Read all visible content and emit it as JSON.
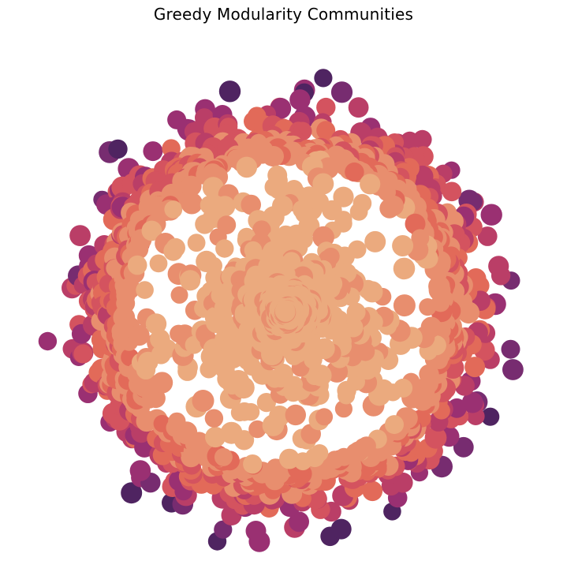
{
  "figure": {
    "title": "Greedy Modularity Communities"
  },
  "palette": {
    "name": "flare",
    "community_colors": [
      "#EBAA7E",
      "#E88E6E",
      "#E26A59",
      "#D4535F",
      "#BA3E67",
      "#9A3072",
      "#772C70",
      "#4F2461"
    ]
  },
  "network": {
    "layout": "radial-spring",
    "node_count_estimate": 1500,
    "edges_visible": false
  }
}
